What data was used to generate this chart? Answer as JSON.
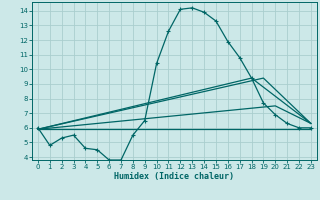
{
  "xlabel": "Humidex (Indice chaleur)",
  "bg_color": "#cce8e8",
  "grid_color": "#aacece",
  "line_color": "#006666",
  "xlim": [
    -0.5,
    23.5
  ],
  "ylim": [
    3.8,
    14.6
  ],
  "yticks": [
    4,
    5,
    6,
    7,
    8,
    9,
    10,
    11,
    12,
    13,
    14
  ],
  "xticks": [
    0,
    1,
    2,
    3,
    4,
    5,
    6,
    7,
    8,
    9,
    10,
    11,
    12,
    13,
    14,
    15,
    16,
    17,
    18,
    19,
    20,
    21,
    22,
    23
  ],
  "line1_x": [
    0,
    1,
    2,
    3,
    4,
    5,
    6,
    7,
    8,
    9,
    10,
    11,
    12,
    13,
    14,
    15,
    16,
    17,
    18,
    19,
    20,
    21,
    22,
    23
  ],
  "line1_y": [
    6.0,
    4.8,
    5.3,
    5.5,
    4.6,
    4.5,
    3.8,
    3.8,
    5.5,
    6.5,
    10.4,
    12.6,
    14.1,
    14.2,
    13.9,
    13.3,
    11.9,
    10.8,
    9.4,
    7.7,
    6.9,
    6.3,
    6.0,
    6.0
  ],
  "line2_x": [
    0,
    23
  ],
  "line2_y": [
    5.9,
    5.9
  ],
  "line3_x": [
    0,
    20,
    23
  ],
  "line3_y": [
    5.9,
    7.5,
    6.3
  ],
  "line4_x": [
    0,
    19,
    23
  ],
  "line4_y": [
    5.9,
    9.4,
    6.3
  ],
  "line5_x": [
    0,
    18,
    23
  ],
  "line5_y": [
    5.9,
    9.4,
    6.3
  ]
}
